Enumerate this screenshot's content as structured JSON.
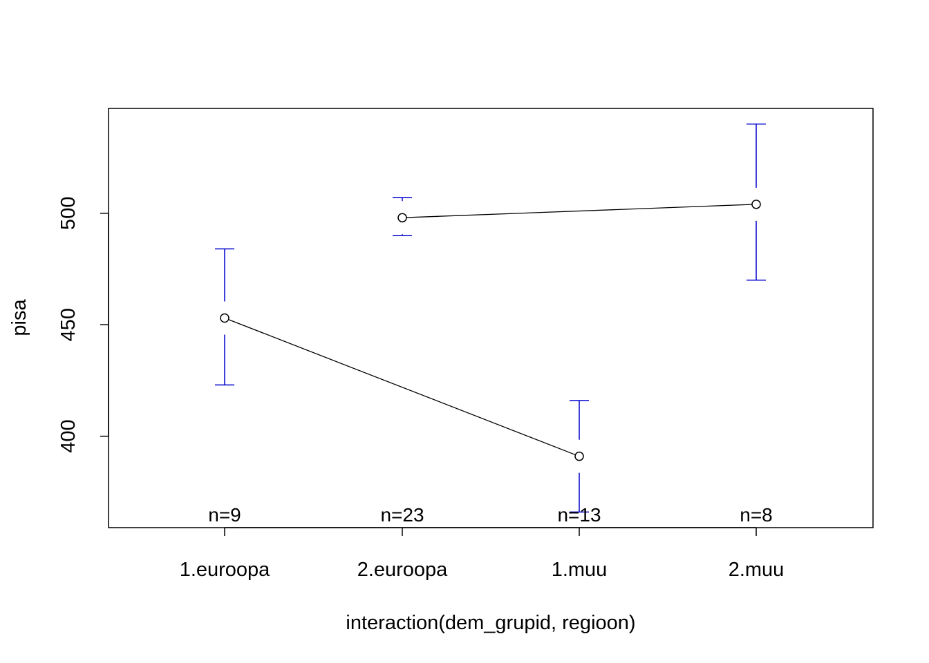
{
  "chart_data": {
    "type": "line",
    "xlabel": "interaction(dem_grupid, regioon)",
    "ylabel": "pisa",
    "categories": [
      "1.euroopa",
      "2.euroopa",
      "1.muu",
      "2.muu"
    ],
    "n_labels": [
      "n=9",
      "n=23",
      "n=13",
      "n=8"
    ],
    "means": [
      453,
      498,
      391,
      504
    ],
    "ci_upper": [
      484,
      507,
      416,
      540
    ],
    "ci_lower": [
      423,
      490,
      366,
      470
    ],
    "connected_pairs": [
      [
        0,
        2
      ],
      [
        1,
        3
      ]
    ],
    "y_ticks": [
      400,
      450,
      500
    ],
    "ylim": [
      359,
      547
    ],
    "grid": false,
    "colors": {
      "errorbar": "#0000CD",
      "line": "#000000",
      "point": "#000000"
    }
  }
}
